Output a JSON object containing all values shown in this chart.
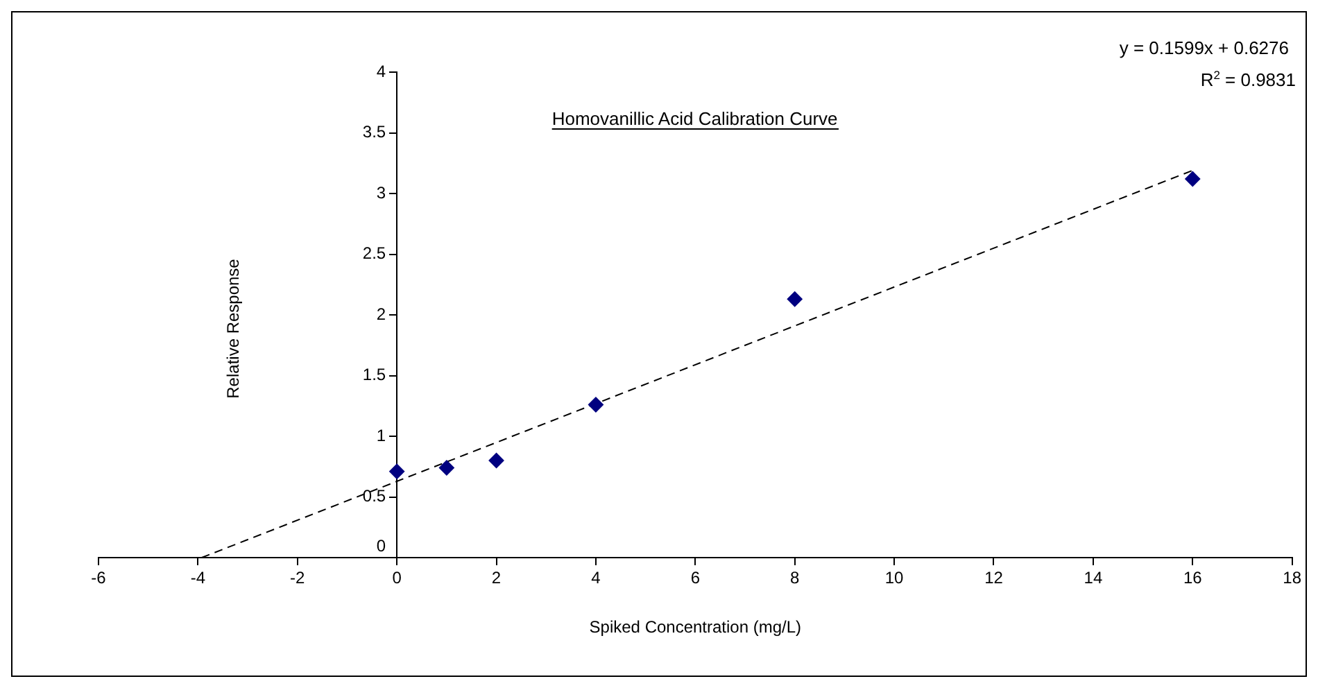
{
  "chart_data": {
    "type": "scatter",
    "title": "Homovanillic Acid Calibration Curve",
    "xlabel": "Spiked Concentration (mg/L)",
    "ylabel": "Relative Response",
    "annotations": [
      "y = 0.1599x + 0.6276",
      "R$^{2}$ = 0.9831"
    ],
    "x": [
      0,
      1,
      2,
      4,
      8,
      16
    ],
    "series": [
      {
        "type": "scatter",
        "color": "#000080",
        "marker": "diamond",
        "values": [
          0.71,
          0.74,
          0.8,
          1.26,
          2.13,
          3.12
        ]
      },
      {
        "type": "line",
        "color": "#000000",
        "marker": "none",
        "line_style": "dashed",
        "x": [
          -3.925,
          16
        ],
        "values": [
          0,
          3.19
        ]
      }
    ],
    "xlim": [
      -6,
      18
    ],
    "xticks": [
      -6,
      -4,
      -2,
      0,
      2,
      4,
      6,
      8,
      10,
      12,
      14,
      16,
      18
    ],
    "ylim": [
      0,
      4
    ],
    "yticks": [
      0,
      0.5,
      1,
      1.5,
      2,
      2.5,
      3,
      3.5,
      4
    ],
    "grid": false,
    "legend": false
  }
}
